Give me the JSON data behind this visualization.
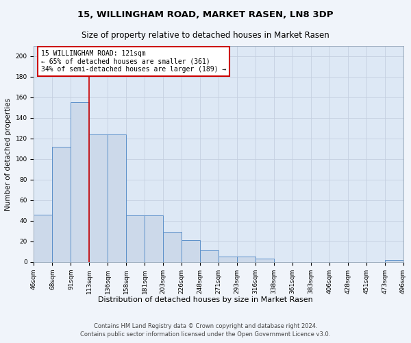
{
  "title": "15, WILLINGHAM ROAD, MARKET RASEN, LN8 3DP",
  "subtitle": "Size of property relative to detached houses in Market Rasen",
  "xlabel": "Distribution of detached houses by size in Market Rasen",
  "ylabel": "Number of detached properties",
  "bar_heights": [
    46,
    112,
    155,
    124,
    124,
    45,
    45,
    29,
    21,
    11,
    5,
    5,
    3,
    0,
    0,
    0,
    0,
    0,
    0,
    2
  ],
  "x_labels": [
    "46sqm",
    "68sqm",
    "91sqm",
    "113sqm",
    "136sqm",
    "158sqm",
    "181sqm",
    "203sqm",
    "226sqm",
    "248sqm",
    "271sqm",
    "293sqm",
    "316sqm",
    "338sqm",
    "361sqm",
    "383sqm",
    "406sqm",
    "428sqm",
    "451sqm",
    "473sqm",
    "496sqm"
  ],
  "bar_color": "#ccd9ea",
  "bar_edge_color": "#5b8fc9",
  "bar_edge_width": 0.7,
  "grid_color": "#c5cfe0",
  "bg_color": "#dde8f5",
  "fig_bg_color": "#f0f4fa",
  "red_line_x": 3.0,
  "red_line_color": "#cc0000",
  "annotation_text": "15 WILLINGHAM ROAD: 121sqm\n← 65% of detached houses are smaller (361)\n34% of semi-detached houses are larger (189) →",
  "annotation_box_color": "#ffffff",
  "annotation_box_edge": "#cc0000",
  "ylim": [
    0,
    210
  ],
  "yticks": [
    0,
    20,
    40,
    60,
    80,
    100,
    120,
    140,
    160,
    180,
    200
  ],
  "footer1": "Contains HM Land Registry data © Crown copyright and database right 2024.",
  "footer2": "Contains public sector information licensed under the Open Government Licence v3.0.",
  "title_fontsize": 9.5,
  "subtitle_fontsize": 8.5,
  "axis_label_fontsize": 7.5,
  "tick_fontsize": 6.5,
  "annotation_fontsize": 7,
  "footer_fontsize": 6,
  "xlabel_fontsize": 8
}
